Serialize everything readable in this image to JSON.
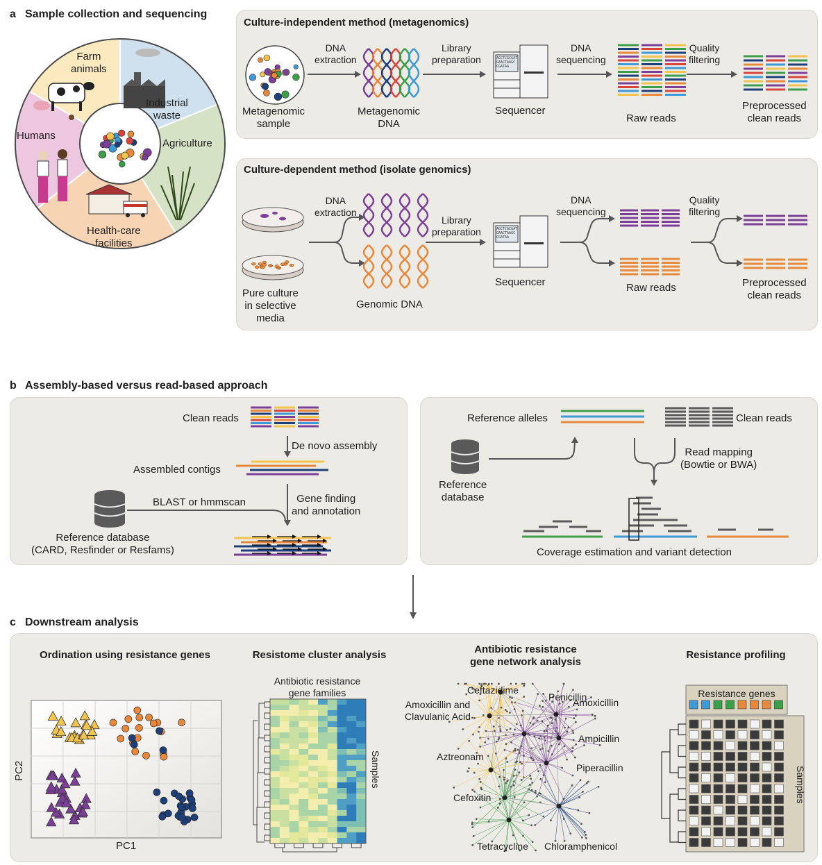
{
  "colors": {
    "panel_bg": "#ecebe6",
    "purple": "#7b3f98",
    "orange": "#e8883a",
    "yellow": "#f2c44d",
    "blue": "#3d9ad6",
    "navy": "#1d3f7a",
    "green": "#3d9e4a",
    "red": "#d9453b",
    "gray": "#5a5a5a",
    "farm_sector": "#fbeac0",
    "industrial_sector": "#cfe0ee",
    "agriculture_sector": "#d5e2c5",
    "healthcare_sector": "#f6d4b4",
    "humans_sector": "#edc6df"
  },
  "section_a": {
    "letter": "a",
    "title": "Sample collection and sequencing",
    "wheel": {
      "farm": [
        "Farm",
        "animals"
      ],
      "industrial": [
        "Industrial",
        "waste"
      ],
      "agriculture": "Agriculture",
      "healthcare": [
        "Health-care",
        "facilities"
      ],
      "humans": "Humans"
    },
    "metagenomics": {
      "title": "Culture-independent method (metagenomics)",
      "sample": [
        "Metagenomic",
        "sample"
      ],
      "step1": [
        "DNA",
        "extraction"
      ],
      "dna": [
        "Metagenomic",
        "DNA"
      ],
      "step2": [
        "Library",
        "preparation"
      ],
      "sequencer": "Sequencer",
      "step3": [
        "DNA",
        "sequencing"
      ],
      "raw": "Raw reads",
      "step4": [
        "Quality",
        "filtering"
      ],
      "clean": [
        "Preprocessed",
        "clean reads"
      ],
      "screen_text": [
        "AGCTCGCGAT",
        "GAACTAAGC",
        "CGATAA"
      ]
    },
    "isolate": {
      "title": "Culture-dependent method (isolate genomics)",
      "culture": [
        "Pure culture",
        "in selective",
        "media"
      ],
      "step1": [
        "DNA",
        "extraction"
      ],
      "dna": "Genomic DNA",
      "step2": [
        "Library",
        "preparation"
      ],
      "sequencer": "Sequencer",
      "step3": [
        "DNA",
        "sequencing"
      ],
      "raw": "Raw reads",
      "step4": [
        "Quality",
        "filtering"
      ],
      "clean": [
        "Preprocessed",
        "clean reads"
      ],
      "screen_text": [
        "AGCTCGCGAT",
        "GAACTAAGC",
        "CGATAA"
      ]
    }
  },
  "section_b": {
    "letter": "b",
    "title": "Assembly-based versus read-based approach",
    "assembly": {
      "clean_reads": "Clean reads",
      "de_novo": "De novo assembly",
      "contigs": "Assembled contigs",
      "blast": "BLAST or hmmscan",
      "gene_finding": [
        "Gene finding",
        "and annotation"
      ],
      "refdb": [
        "Reference database",
        "(CARD, Resfinder or Resfams)"
      ]
    },
    "read": {
      "ref_alleles": "Reference alleles",
      "clean_reads": "Clean reads",
      "read_mapping": [
        "Read mapping",
        "(Bowtie or BWA)"
      ],
      "refdb": [
        "Reference",
        "database"
      ],
      "coverage": "Coverage estimation and variant detection"
    }
  },
  "section_c": {
    "letter": "c",
    "title": "Downstream analysis",
    "ordination": {
      "title": "Ordination using resistance genes",
      "xlabel": "PC1",
      "ylabel": "PC2"
    },
    "cluster": {
      "title": "Resistome cluster analysis",
      "col_label": [
        "Antibiotic resistance",
        "gene families"
      ],
      "row_label": "Samples"
    },
    "network": {
      "title": [
        "Antibiotic resistance",
        "gene network analysis"
      ],
      "labels": {
        "ceftazidime": "Ceftazidime",
        "amox_clav": [
          "Amoxicillin and",
          "Clavulanic Acid"
        ],
        "penicillin": "Penicillin",
        "amoxicillin": "Amoxicillin",
        "ampicillin": "Ampicillin",
        "aztreonam": "Aztreonam",
        "piperacillin": "Piperacillin",
        "cefoxitin": "Cefoxitin",
        "tetracycline": "Tetracycline",
        "chloramphenicol": "Chloramphenicol"
      }
    },
    "profiling": {
      "title": "Resistance profiling",
      "genes_label": "Resistance genes",
      "samples_label": "Samples",
      "gene_colors": [
        "#3d9ad6",
        "#3d9ad6",
        "#3d9e4a",
        "#3d9e4a",
        "#e8883a",
        "#e8883a",
        "#e8883a",
        "#3d9e4a"
      ],
      "matrix": [
        [
          0,
          1,
          0,
          0,
          0,
          1,
          0,
          0
        ],
        [
          1,
          0,
          1,
          0,
          1,
          0,
          1,
          0
        ],
        [
          0,
          0,
          0,
          1,
          0,
          0,
          0,
          1
        ],
        [
          1,
          1,
          0,
          0,
          0,
          1,
          0,
          0
        ],
        [
          0,
          0,
          0,
          0,
          0,
          0,
          1,
          0
        ],
        [
          0,
          1,
          0,
          1,
          0,
          0,
          0,
          0
        ],
        [
          1,
          0,
          0,
          0,
          0,
          1,
          0,
          1
        ],
        [
          0,
          1,
          0,
          0,
          1,
          0,
          0,
          0
        ],
        [
          0,
          0,
          1,
          0,
          0,
          0,
          0,
          0
        ],
        [
          1,
          0,
          0,
          1,
          0,
          1,
          0,
          0
        ],
        [
          0,
          1,
          0,
          0,
          0,
          0,
          1,
          0
        ],
        [
          0,
          0,
          1,
          1,
          0,
          1,
          0,
          1
        ]
      ]
    }
  }
}
